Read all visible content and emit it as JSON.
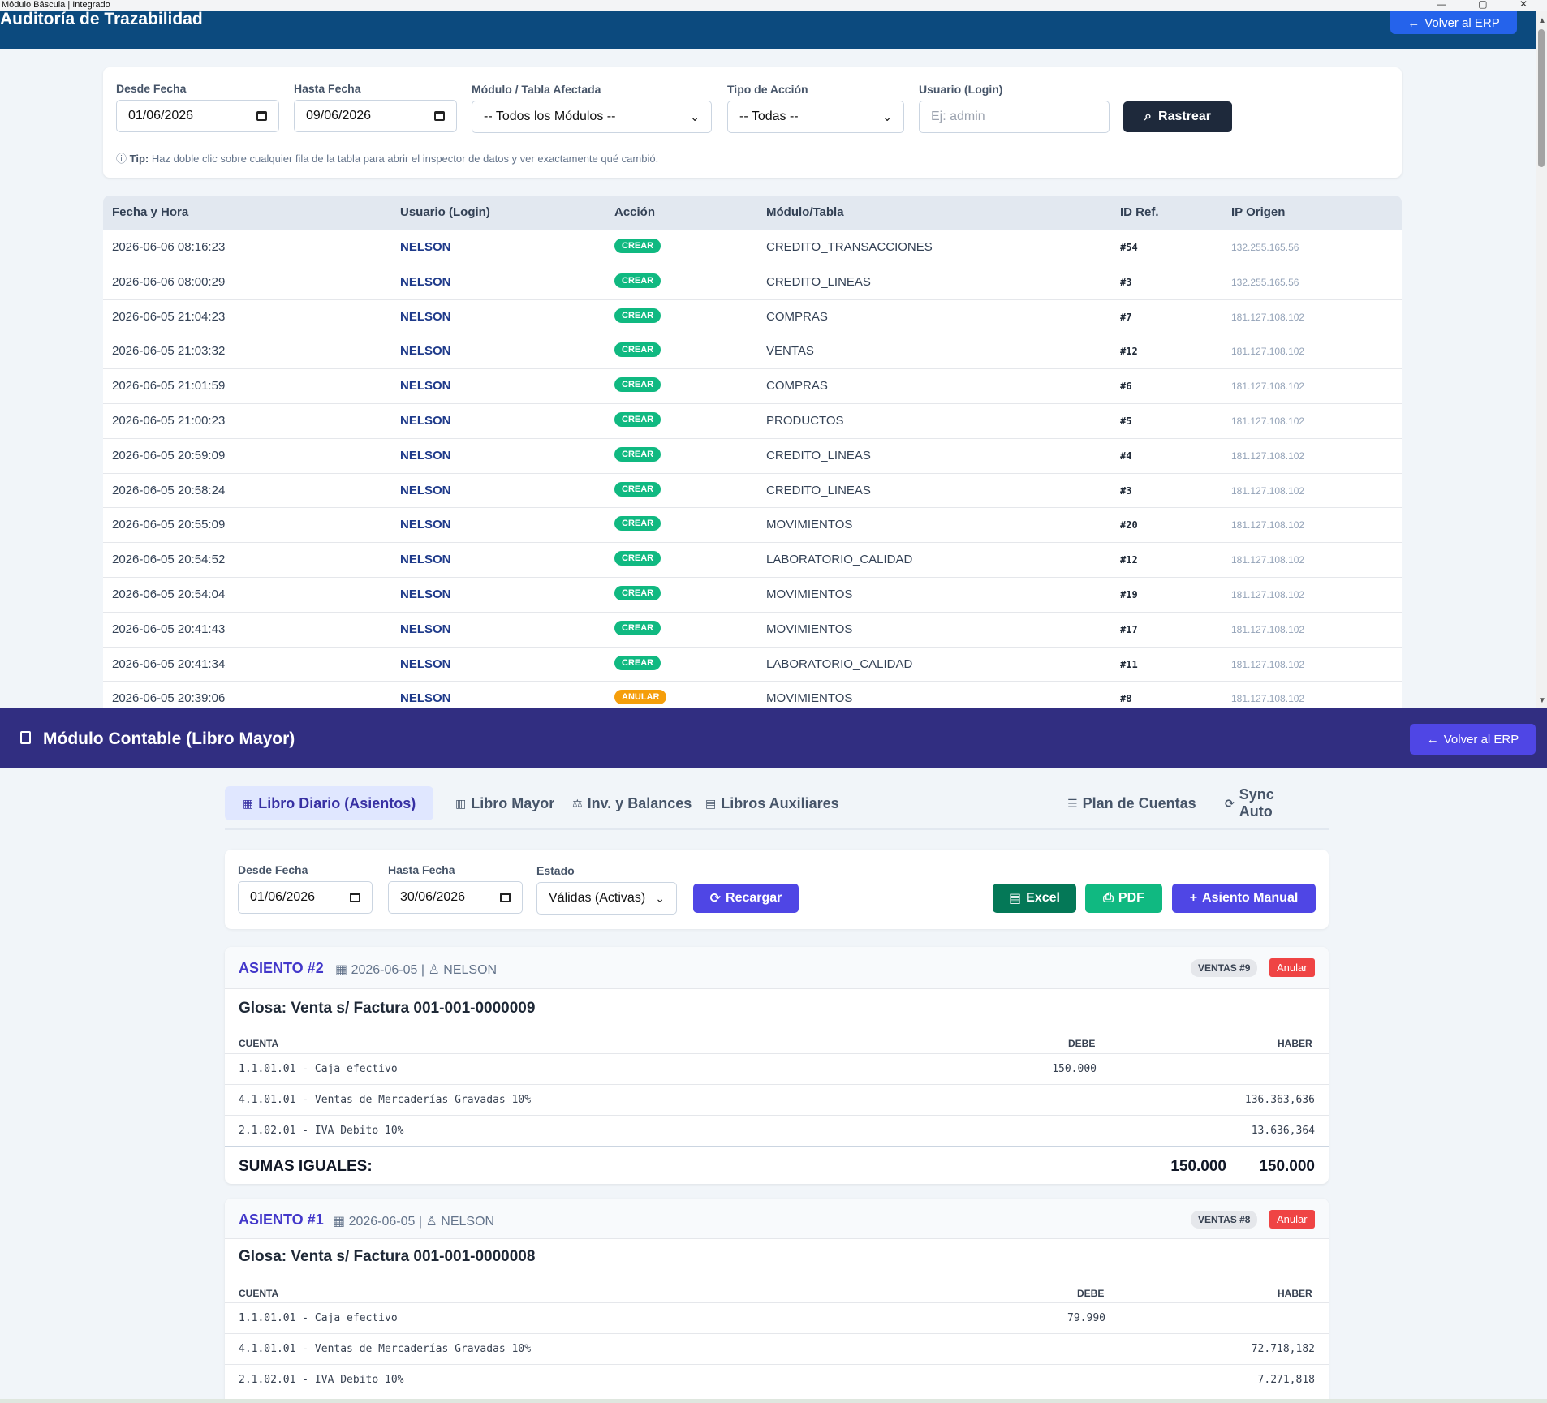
{
  "os": {
    "window_title": "Módulo Báscula | Integrado",
    "controls": "— ▢ ✕"
  },
  "audit": {
    "title": "Auditoría de Trazabilidad",
    "back_button": "Volver al ERP",
    "back_arrow": "←",
    "filters": {
      "desde_label": "Desde Fecha",
      "desde_value": "01/06/2026",
      "hasta_label": "Hasta Fecha",
      "hasta_value": "09/06/2026",
      "modulo_label": "Módulo / Tabla Afectada",
      "modulo_value": "-- Todos los Módulos --",
      "accion_label": "Tipo de Acción",
      "accion_value": "-- Todas --",
      "usuario_label": "Usuario (Login)",
      "usuario_placeholder": "Ej: admin",
      "search_button": "Rastrear"
    },
    "tip_icon": "ⓘ",
    "tip_bold": "Tip:",
    "tip_text": "Haz doble clic sobre cualquier fila de la tabla para abrir el inspector de datos y ver exactamente qué cambió.",
    "columns": [
      "Fecha y Hora",
      "Usuario (Login)",
      "Acción",
      "Módulo/Tabla",
      "ID Ref.",
      "IP Origen"
    ],
    "rows": [
      {
        "fecha": "2026-06-06 08:16:23",
        "usuario": "NELSON",
        "accion": "CREAR",
        "modulo": "CREDITO_TRANSACCIONES",
        "ref": "#54",
        "ip": "132.255.165.56"
      },
      {
        "fecha": "2026-06-06 08:00:29",
        "usuario": "NELSON",
        "accion": "CREAR",
        "modulo": "CREDITO_LINEAS",
        "ref": "#3",
        "ip": "132.255.165.56"
      },
      {
        "fecha": "2026-06-05 21:04:23",
        "usuario": "NELSON",
        "accion": "CREAR",
        "modulo": "COMPRAS",
        "ref": "#7",
        "ip": "181.127.108.102"
      },
      {
        "fecha": "2026-06-05 21:03:32",
        "usuario": "NELSON",
        "accion": "CREAR",
        "modulo": "VENTAS",
        "ref": "#12",
        "ip": "181.127.108.102"
      },
      {
        "fecha": "2026-06-05 21:01:59",
        "usuario": "NELSON",
        "accion": "CREAR",
        "modulo": "COMPRAS",
        "ref": "#6",
        "ip": "181.127.108.102"
      },
      {
        "fecha": "2026-06-05 21:00:23",
        "usuario": "NELSON",
        "accion": "CREAR",
        "modulo": "PRODUCTOS",
        "ref": "#5",
        "ip": "181.127.108.102"
      },
      {
        "fecha": "2026-06-05 20:59:09",
        "usuario": "NELSON",
        "accion": "CREAR",
        "modulo": "CREDITO_LINEAS",
        "ref": "#4",
        "ip": "181.127.108.102"
      },
      {
        "fecha": "2026-06-05 20:58:24",
        "usuario": "NELSON",
        "accion": "CREAR",
        "modulo": "CREDITO_LINEAS",
        "ref": "#3",
        "ip": "181.127.108.102"
      },
      {
        "fecha": "2026-06-05 20:55:09",
        "usuario": "NELSON",
        "accion": "CREAR",
        "modulo": "MOVIMIENTOS",
        "ref": "#20",
        "ip": "181.127.108.102"
      },
      {
        "fecha": "2026-06-05 20:54:52",
        "usuario": "NELSON",
        "accion": "CREAR",
        "modulo": "LABORATORIO_CALIDAD",
        "ref": "#12",
        "ip": "181.127.108.102"
      },
      {
        "fecha": "2026-06-05 20:54:04",
        "usuario": "NELSON",
        "accion": "CREAR",
        "modulo": "MOVIMIENTOS",
        "ref": "#19",
        "ip": "181.127.108.102"
      },
      {
        "fecha": "2026-06-05 20:41:43",
        "usuario": "NELSON",
        "accion": "CREAR",
        "modulo": "MOVIMIENTOS",
        "ref": "#17",
        "ip": "181.127.108.102"
      },
      {
        "fecha": "2026-06-05 20:41:34",
        "usuario": "NELSON",
        "accion": "CREAR",
        "modulo": "LABORATORIO_CALIDAD",
        "ref": "#11",
        "ip": "181.127.108.102"
      },
      {
        "fecha": "2026-06-05 20:39:06",
        "usuario": "NELSON",
        "accion": "ANULAR",
        "modulo": "MOVIMIENTOS",
        "ref": "#8",
        "ip": "181.127.108.102"
      }
    ],
    "badge_colors": {
      "CREAR": "#10b981",
      "ANULAR": "#f59e0b"
    }
  },
  "contable": {
    "title": "Módulo Contable (Libro Mayor)",
    "back_button": "Volver al ERP",
    "back_arrow": "←",
    "tabs": [
      {
        "icon": "▦",
        "label": "Libro Diario (Asientos)"
      },
      {
        "icon": "▥",
        "label": "Libro Mayor"
      },
      {
        "icon": "⚖",
        "label": "Inv. y Balances"
      },
      {
        "icon": "▤",
        "label": "Libros Auxiliares"
      },
      {
        "icon": "☰",
        "label": "Plan de Cuentas"
      },
      {
        "icon": "⟳",
        "label": "Sync Auto"
      }
    ],
    "filters": {
      "desde_label": "Desde Fecha",
      "desde_value": "01/06/2026",
      "hasta_label": "Hasta Fecha",
      "hasta_value": "30/06/2026",
      "estado_label": "Estado",
      "estado_value": "Válidas (Activas)",
      "reload_button": "Recargar",
      "reload_icon": "⟳",
      "excel_button": "Excel",
      "excel_icon": "▤",
      "pdf_button": "PDF",
      "pdf_icon": "⎙",
      "manual_button": "Asiento Manual",
      "manual_icon": "+"
    },
    "asientos": [
      {
        "num": "ASIENTO #2",
        "date_icon": "▦",
        "date": "2026-06-05",
        "sep": "|",
        "user_icon": "♙",
        "user": "NELSON",
        "ref": "VENTAS #9",
        "anular": "Anular",
        "glosa": "Glosa: Venta s/ Factura 001-001-0000009",
        "col_cuenta": "CUENTA",
        "col_debe": "DEBE",
        "col_haber": "HABER",
        "lines": [
          {
            "cuenta": "1.1.01.01 - Caja efectivo",
            "debe": "150.000",
            "haber": ""
          },
          {
            "cuenta": "4.1.01.01 - Ventas de Mercaderías Gravadas 10%",
            "debe": "",
            "haber": "136.363,636"
          },
          {
            "cuenta": "2.1.02.01 - IVA Debito 10%",
            "debe": "",
            "haber": "13.636,364"
          }
        ],
        "sumas_label": "SUMAS IGUALES:",
        "sumas_debe": "150.000",
        "sumas_haber": "150.000"
      },
      {
        "num": "ASIENTO #1",
        "date_icon": "▦",
        "date": "2026-06-05",
        "sep": "|",
        "user_icon": "♙",
        "user": "NELSON",
        "ref": "VENTAS #8",
        "anular": "Anular",
        "glosa": "Glosa: Venta s/ Factura 001-001-0000008",
        "col_cuenta": "CUENTA",
        "col_debe": "DEBE",
        "col_haber": "HABER",
        "lines": [
          {
            "cuenta": "1.1.01.01 - Caja efectivo",
            "debe": "79.990",
            "haber": ""
          },
          {
            "cuenta": "4.1.01.01 - Ventas de Mercaderías Gravadas 10%",
            "debe": "",
            "haber": "72.718,182"
          },
          {
            "cuenta": "2.1.02.01 - IVA Debito 10%",
            "debe": "",
            "haber": "7.271,818"
          }
        ]
      }
    ],
    "colors": {
      "excel": "#047857",
      "pdf": "#10b981",
      "primary": "#4f46e5",
      "anular": "#ef4444"
    }
  }
}
